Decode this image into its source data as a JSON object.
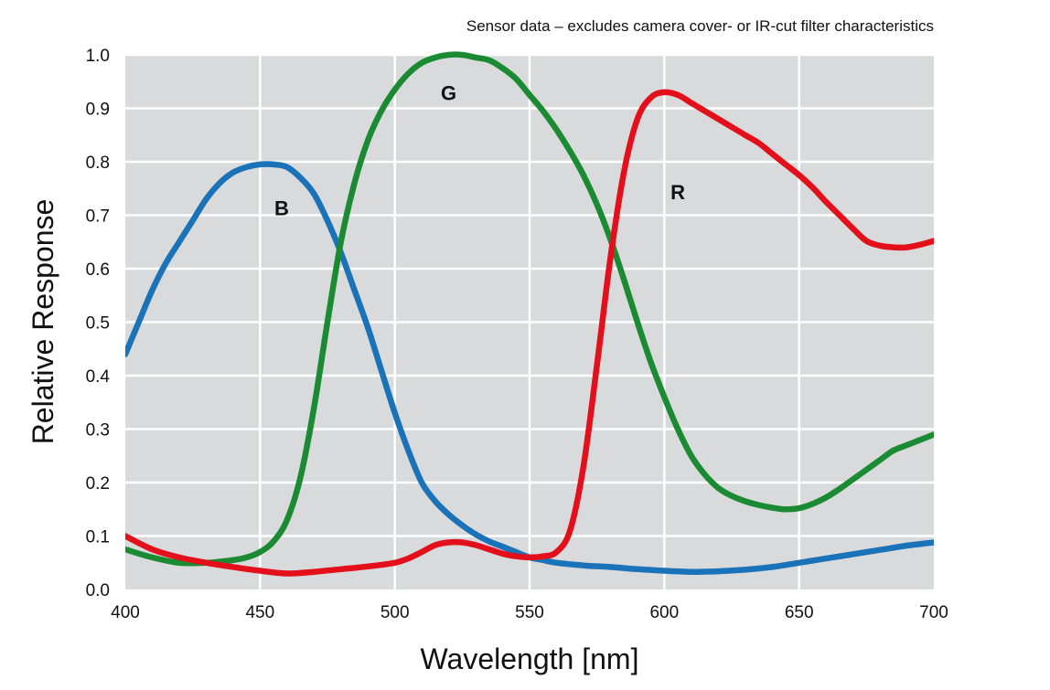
{
  "chart_data": {
    "type": "line",
    "title": "",
    "note": "Sensor data – excludes camera cover- or IR-cut filter characteristics",
    "xlabel": "Wavelength [nm]",
    "ylabel": "Relative Response",
    "xlim": [
      400,
      700
    ],
    "ylim": [
      0,
      1.0
    ],
    "xticks": [
      "400",
      "450",
      "500",
      "550",
      "600",
      "650",
      "700"
    ],
    "yticks": [
      "0.0",
      "0.1",
      "0.2",
      "0.3",
      "0.4",
      "0.5",
      "0.6",
      "0.7",
      "0.8",
      "0.9",
      "1.0"
    ],
    "grid": true,
    "background": "#d9dadb",
    "series": [
      {
        "name": "B",
        "color": "#1a72b8",
        "label_at": [
          458,
          0.7
        ],
        "points": [
          [
            400,
            0.44
          ],
          [
            405,
            0.5
          ],
          [
            410,
            0.56
          ],
          [
            415,
            0.61
          ],
          [
            420,
            0.65
          ],
          [
            425,
            0.69
          ],
          [
            430,
            0.73
          ],
          [
            435,
            0.76
          ],
          [
            440,
            0.78
          ],
          [
            445,
            0.79
          ],
          [
            450,
            0.795
          ],
          [
            455,
            0.795
          ],
          [
            460,
            0.79
          ],
          [
            465,
            0.77
          ],
          [
            470,
            0.74
          ],
          [
            475,
            0.69
          ],
          [
            480,
            0.63
          ],
          [
            485,
            0.56
          ],
          [
            490,
            0.49
          ],
          [
            495,
            0.41
          ],
          [
            500,
            0.33
          ],
          [
            505,
            0.26
          ],
          [
            510,
            0.2
          ],
          [
            515,
            0.165
          ],
          [
            520,
            0.14
          ],
          [
            525,
            0.12
          ],
          [
            530,
            0.103
          ],
          [
            535,
            0.09
          ],
          [
            540,
            0.08
          ],
          [
            545,
            0.07
          ],
          [
            550,
            0.06
          ],
          [
            555,
            0.055
          ],
          [
            560,
            0.05
          ],
          [
            570,
            0.045
          ],
          [
            580,
            0.042
          ],
          [
            590,
            0.038
          ],
          [
            600,
            0.035
          ],
          [
            610,
            0.033
          ],
          [
            620,
            0.034
          ],
          [
            630,
            0.037
          ],
          [
            640,
            0.042
          ],
          [
            650,
            0.05
          ],
          [
            660,
            0.058
          ],
          [
            670,
            0.066
          ],
          [
            680,
            0.074
          ],
          [
            690,
            0.082
          ],
          [
            700,
            0.088
          ]
        ]
      },
      {
        "name": "G",
        "color": "#1b8b33",
        "label_at": [
          520,
          0.915
        ],
        "points": [
          [
            400,
            0.075
          ],
          [
            410,
            0.06
          ],
          [
            420,
            0.05
          ],
          [
            430,
            0.05
          ],
          [
            440,
            0.055
          ],
          [
            445,
            0.06
          ],
          [
            450,
            0.07
          ],
          [
            455,
            0.09
          ],
          [
            460,
            0.13
          ],
          [
            465,
            0.21
          ],
          [
            470,
            0.34
          ],
          [
            475,
            0.5
          ],
          [
            480,
            0.65
          ],
          [
            485,
            0.76
          ],
          [
            490,
            0.84
          ],
          [
            495,
            0.895
          ],
          [
            500,
            0.935
          ],
          [
            505,
            0.965
          ],
          [
            510,
            0.985
          ],
          [
            515,
            0.995
          ],
          [
            520,
            1.0
          ],
          [
            525,
            1.0
          ],
          [
            530,
            0.995
          ],
          [
            535,
            0.99
          ],
          [
            540,
            0.975
          ],
          [
            545,
            0.955
          ],
          [
            550,
            0.925
          ],
          [
            555,
            0.895
          ],
          [
            560,
            0.86
          ],
          [
            565,
            0.82
          ],
          [
            570,
            0.775
          ],
          [
            575,
            0.72
          ],
          [
            580,
            0.655
          ],
          [
            585,
            0.58
          ],
          [
            590,
            0.5
          ],
          [
            595,
            0.425
          ],
          [
            600,
            0.36
          ],
          [
            605,
            0.3
          ],
          [
            610,
            0.25
          ],
          [
            615,
            0.215
          ],
          [
            620,
            0.19
          ],
          [
            625,
            0.175
          ],
          [
            630,
            0.165
          ],
          [
            635,
            0.158
          ],
          [
            640,
            0.153
          ],
          [
            645,
            0.15
          ],
          [
            650,
            0.152
          ],
          [
            655,
            0.16
          ],
          [
            660,
            0.172
          ],
          [
            665,
            0.188
          ],
          [
            670,
            0.206
          ],
          [
            675,
            0.224
          ],
          [
            680,
            0.242
          ],
          [
            685,
            0.26
          ],
          [
            690,
            0.27
          ],
          [
            695,
            0.28
          ],
          [
            700,
            0.29
          ]
        ]
      },
      {
        "name": "R",
        "color": "#e3101c",
        "label_at": [
          605,
          0.73
        ],
        "points": [
          [
            400,
            0.1
          ],
          [
            410,
            0.075
          ],
          [
            420,
            0.06
          ],
          [
            430,
            0.05
          ],
          [
            440,
            0.042
          ],
          [
            450,
            0.035
          ],
          [
            460,
            0.03
          ],
          [
            470,
            0.033
          ],
          [
            480,
            0.038
          ],
          [
            490,
            0.043
          ],
          [
            500,
            0.05
          ],
          [
            505,
            0.058
          ],
          [
            510,
            0.07
          ],
          [
            515,
            0.083
          ],
          [
            520,
            0.088
          ],
          [
            525,
            0.088
          ],
          [
            530,
            0.083
          ],
          [
            535,
            0.075
          ],
          [
            540,
            0.067
          ],
          [
            545,
            0.062
          ],
          [
            550,
            0.06
          ],
          [
            555,
            0.062
          ],
          [
            560,
            0.07
          ],
          [
            565,
            0.11
          ],
          [
            570,
            0.23
          ],
          [
            575,
            0.42
          ],
          [
            580,
            0.62
          ],
          [
            585,
            0.78
          ],
          [
            590,
            0.88
          ],
          [
            595,
            0.92
          ],
          [
            600,
            0.93
          ],
          [
            605,
            0.925
          ],
          [
            610,
            0.91
          ],
          [
            615,
            0.895
          ],
          [
            620,
            0.88
          ],
          [
            625,
            0.865
          ],
          [
            630,
            0.85
          ],
          [
            635,
            0.835
          ],
          [
            640,
            0.815
          ],
          [
            645,
            0.795
          ],
          [
            650,
            0.775
          ],
          [
            655,
            0.752
          ],
          [
            660,
            0.725
          ],
          [
            665,
            0.7
          ],
          [
            670,
            0.675
          ],
          [
            675,
            0.652
          ],
          [
            680,
            0.643
          ],
          [
            685,
            0.64
          ],
          [
            690,
            0.64
          ],
          [
            695,
            0.645
          ],
          [
            700,
            0.652
          ]
        ]
      }
    ]
  }
}
